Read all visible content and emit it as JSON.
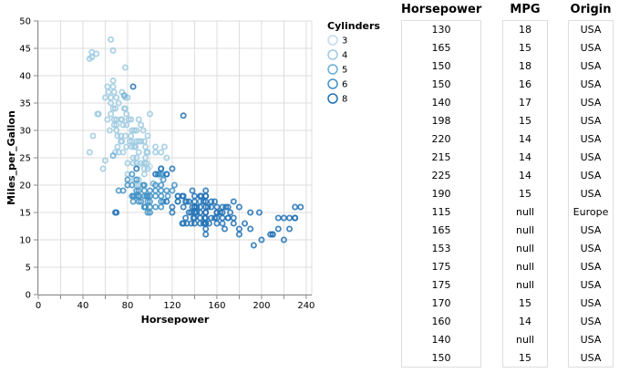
{
  "chart_data": {
    "type": "scatter",
    "xlabel": "Horsepower",
    "ylabel": "Miles_per_Gallon",
    "xlim": [
      0,
      245
    ],
    "ylim": [
      0,
      50
    ],
    "x_ticks": [
      0,
      40,
      80,
      120,
      160,
      200,
      240
    ],
    "y_ticks": [
      0,
      5,
      10,
      15,
      20,
      25,
      30,
      35,
      40,
      45,
      50
    ],
    "grid": true,
    "legend": {
      "title": "Cylinders",
      "placement": "right",
      "entries": [
        {
          "label": "3",
          "color": "#c2dced"
        },
        {
          "label": "4",
          "color": "#9ecae1"
        },
        {
          "label": "5",
          "color": "#6baed6"
        },
        {
          "label": "6",
          "color": "#4292c6"
        },
        {
          "label": "8",
          "color": "#2171b5"
        }
      ]
    },
    "series": [
      {
        "name": "3",
        "color": "#c2dced",
        "points": [
          [
            97,
            18
          ],
          [
            110,
            21.5
          ],
          [
            90,
            23.7
          ],
          [
            100,
            23.4
          ]
        ]
      },
      {
        "name": "4",
        "color": "#9ecae1",
        "points": [
          [
            46,
            26
          ],
          [
            46,
            43.1
          ],
          [
            48,
            44.3
          ],
          [
            48,
            43.4
          ],
          [
            49,
            29
          ],
          [
            52,
            44
          ],
          [
            53,
            33
          ],
          [
            54,
            33
          ],
          [
            58,
            23
          ],
          [
            60,
            24.5
          ],
          [
            62,
            38
          ],
          [
            65,
            36
          ],
          [
            65,
            46.6
          ],
          [
            67,
            39.1
          ],
          [
            67,
            44.6
          ],
          [
            68,
            31
          ],
          [
            68,
            37
          ],
          [
            69,
            26
          ],
          [
            70,
            31
          ],
          [
            70,
            30
          ],
          [
            70,
            32
          ],
          [
            71,
            27
          ],
          [
            72,
            35
          ],
          [
            74,
            29
          ],
          [
            75,
            32
          ],
          [
            75,
            28
          ],
          [
            76,
            31
          ],
          [
            78,
            34
          ],
          [
            78,
            36
          ],
          [
            79,
            27
          ],
          [
            80,
            36
          ],
          [
            80,
            22
          ],
          [
            83,
            32
          ],
          [
            84,
            30
          ],
          [
            84,
            27
          ],
          [
            85,
            25
          ],
          [
            86,
            27
          ],
          [
            87,
            27
          ],
          [
            88,
            30
          ],
          [
            88,
            25
          ],
          [
            88,
            28
          ],
          [
            90,
            26
          ],
          [
            90,
            28
          ],
          [
            90,
            32
          ],
          [
            92,
            24
          ],
          [
            95,
            24
          ],
          [
            95,
            22
          ],
          [
            96,
            27
          ],
          [
            97,
            26
          ],
          [
            98,
            23
          ],
          [
            98,
            26
          ],
          [
            100,
            33
          ],
          [
            105,
            27
          ],
          [
            105,
            26
          ],
          [
            110,
            26
          ],
          [
            112,
            22
          ],
          [
            113,
            27
          ],
          [
            115,
            25
          ],
          [
            72,
            26
          ],
          [
            76,
            26
          ],
          [
            79,
            33
          ],
          [
            82,
            28
          ],
          [
            83,
            29
          ],
          [
            86,
            30
          ],
          [
            60,
            36
          ],
          [
            65,
            33
          ],
          [
            64,
            30
          ],
          [
            70,
            36
          ],
          [
            71,
            29
          ],
          [
            74,
            28
          ],
          [
            74,
            32
          ],
          [
            80,
            24
          ],
          [
            81,
            32
          ],
          [
            84,
            28
          ],
          [
            92,
            28
          ],
          [
            92,
            31
          ],
          [
            94,
            30
          ],
          [
            95,
            28
          ],
          [
            96,
            25
          ],
          [
            98,
            29
          ],
          [
            65,
            35
          ],
          [
            63,
            37
          ],
          [
            62,
            32
          ],
          [
            67,
            34
          ],
          [
            68,
            32
          ],
          [
            69,
            34
          ],
          [
            75,
            37
          ],
          [
            77,
            34
          ],
          [
            78,
            41.5
          ],
          [
            79,
            31
          ],
          [
            85,
            24
          ],
          [
            88,
            24
          ],
          [
            90,
            21
          ],
          [
            95,
            23
          ],
          [
            97,
            24
          ],
          [
            88,
            20
          ],
          [
            86,
            21
          ],
          [
            90,
            20
          ],
          [
            67,
            38
          ],
          [
            78,
            29
          ]
        ]
      },
      {
        "name": "5",
        "color": "#6baed6",
        "points": [
          [
            67,
            25.4
          ],
          [
            77,
            36.4
          ],
          [
            103,
            20.3
          ]
        ]
      },
      {
        "name": "6",
        "color": "#4292c6",
        "points": [
          [
            72,
            19
          ],
          [
            76,
            19
          ],
          [
            80,
            20
          ],
          [
            84,
            18
          ],
          [
            85,
            18
          ],
          [
            88,
            21
          ],
          [
            88,
            19
          ],
          [
            90,
            19
          ],
          [
            90,
            18
          ],
          [
            94,
            20
          ],
          [
            95,
            20
          ],
          [
            95,
            18
          ],
          [
            95,
            19
          ],
          [
            97,
            18
          ],
          [
            98,
            17
          ],
          [
            100,
            18
          ],
          [
            100,
            19
          ],
          [
            100,
            16
          ],
          [
            100,
            17
          ],
          [
            105,
            20
          ],
          [
            105,
            18
          ],
          [
            105,
            16
          ],
          [
            105,
            19
          ],
          [
            107,
            22
          ],
          [
            110,
            20
          ],
          [
            110,
            18
          ],
          [
            110,
            16
          ],
          [
            110,
            19
          ],
          [
            110,
            23
          ],
          [
            110,
            22
          ],
          [
            112,
            21
          ],
          [
            115,
            19
          ],
          [
            115,
            22
          ],
          [
            116,
            18
          ],
          [
            120,
            19
          ],
          [
            122,
            20
          ],
          [
            125,
            17
          ],
          [
            133,
            17
          ],
          [
            100,
            15
          ],
          [
            90,
            17
          ],
          [
            95,
            16
          ],
          [
            86,
            18
          ],
          [
            84,
            20
          ],
          [
            88,
            18
          ],
          [
            98,
            18
          ],
          [
            90,
            18
          ],
          [
            108,
            22
          ],
          [
            112,
            17
          ],
          [
            125,
            18
          ],
          [
            140,
            16
          ],
          [
            145,
            17
          ],
          [
            110,
            17
          ],
          [
            80,
            21
          ],
          [
            84,
            22
          ],
          [
            96,
            16
          ],
          [
            98,
            15
          ],
          [
            92,
            17
          ],
          [
            85,
            17
          ],
          [
            95,
            16
          ]
        ]
      },
      {
        "name": "8",
        "color": "#2171b5",
        "points": [
          [
            69,
            15
          ],
          [
            85,
            38
          ],
          [
            88,
            23
          ],
          [
            105,
            22
          ],
          [
            110,
            23
          ],
          [
            115,
            22
          ],
          [
            120,
            23
          ],
          [
            125,
            18
          ],
          [
            129,
            13
          ],
          [
            130,
            13
          ],
          [
            130,
            18
          ],
          [
            130,
            16
          ],
          [
            135,
            15
          ],
          [
            137,
            13
          ],
          [
            140,
            14
          ],
          [
            140,
            16
          ],
          [
            140,
            17
          ],
          [
            145,
            15
          ],
          [
            145,
            13
          ],
          [
            148,
            13
          ],
          [
            150,
            15
          ],
          [
            150,
            14
          ],
          [
            150,
            13
          ],
          [
            150,
            12
          ],
          [
            150,
            16
          ],
          [
            150,
            11
          ],
          [
            153,
            13
          ],
          [
            155,
            14
          ],
          [
            158,
            14
          ],
          [
            160,
            13
          ],
          [
            160,
            15
          ],
          [
            165,
            14
          ],
          [
            165,
            13
          ],
          [
            167,
            12
          ],
          [
            170,
            14
          ],
          [
            175,
            13
          ],
          [
            175,
            14
          ],
          [
            180,
            12
          ],
          [
            180,
            11
          ],
          [
            190,
            15
          ],
          [
            193,
            9
          ],
          [
            198,
            15
          ],
          [
            200,
            10
          ],
          [
            208,
            11
          ],
          [
            210,
            11
          ],
          [
            215,
            14
          ],
          [
            215,
            12
          ],
          [
            220,
            14
          ],
          [
            225,
            14
          ],
          [
            225,
            12
          ],
          [
            230,
            14
          ],
          [
            230,
            16
          ],
          [
            180,
            16
          ],
          [
            150,
            17
          ],
          [
            150,
            18
          ],
          [
            145,
            18
          ],
          [
            140,
            18
          ],
          [
            138,
            16
          ],
          [
            135,
            17
          ],
          [
            132,
            14
          ],
          [
            140,
            13
          ],
          [
            145,
            14
          ],
          [
            150,
            18
          ],
          [
            155,
            16
          ],
          [
            160,
            16
          ],
          [
            165,
            16
          ],
          [
            170,
            16
          ],
          [
            175,
            17
          ],
          [
            168,
            16
          ],
          [
            163,
            15
          ],
          [
            158,
            17
          ],
          [
            152,
            16
          ],
          [
            148,
            17
          ],
          [
            142,
            16
          ],
          [
            137,
            15
          ],
          [
            133,
            13
          ],
          [
            130,
            32.7
          ],
          [
            115,
            17
          ],
          [
            120,
            16
          ],
          [
            125,
            17
          ],
          [
            170,
            14
          ],
          [
            165,
            15
          ],
          [
            160,
            15
          ],
          [
            150,
            13
          ],
          [
            150,
            15
          ],
          [
            140,
            15
          ],
          [
            132,
            17
          ],
          [
            138,
            19
          ],
          [
            142,
            15
          ],
          [
            145,
            16
          ],
          [
            146,
            18
          ],
          [
            150,
            19
          ],
          [
            155,
            17
          ],
          [
            160,
            14
          ],
          [
            172,
            15
          ],
          [
            185,
            13
          ],
          [
            190,
            12
          ],
          [
            210,
            11
          ],
          [
            220,
            10
          ],
          [
            230,
            14
          ],
          [
            235,
            16
          ],
          [
            120,
            15
          ],
          [
            129,
            18
          ],
          [
            139,
            14
          ],
          [
            149,
            14
          ],
          [
            70,
            15
          ]
        ]
      }
    ]
  },
  "table": {
    "columns": [
      {
        "title": "Horsepower",
        "values": [
          "130",
          "165",
          "150",
          "150",
          "140",
          "198",
          "220",
          "215",
          "225",
          "190",
          "115",
          "165",
          "153",
          "175",
          "175",
          "170",
          "160",
          "140",
          "150"
        ]
      },
      {
        "title": "MPG",
        "values": [
          "18",
          "15",
          "18",
          "16",
          "17",
          "15",
          "14",
          "14",
          "14",
          "15",
          "null",
          "null",
          "null",
          "null",
          "null",
          "15",
          "14",
          "null",
          "15"
        ]
      },
      {
        "title": "Origin",
        "values": [
          "USA",
          "USA",
          "USA",
          "USA",
          "USA",
          "USA",
          "USA",
          "USA",
          "USA",
          "USA",
          "Europe",
          "USA",
          "USA",
          "USA",
          "USA",
          "USA",
          "USA",
          "USA",
          "USA"
        ]
      }
    ]
  }
}
